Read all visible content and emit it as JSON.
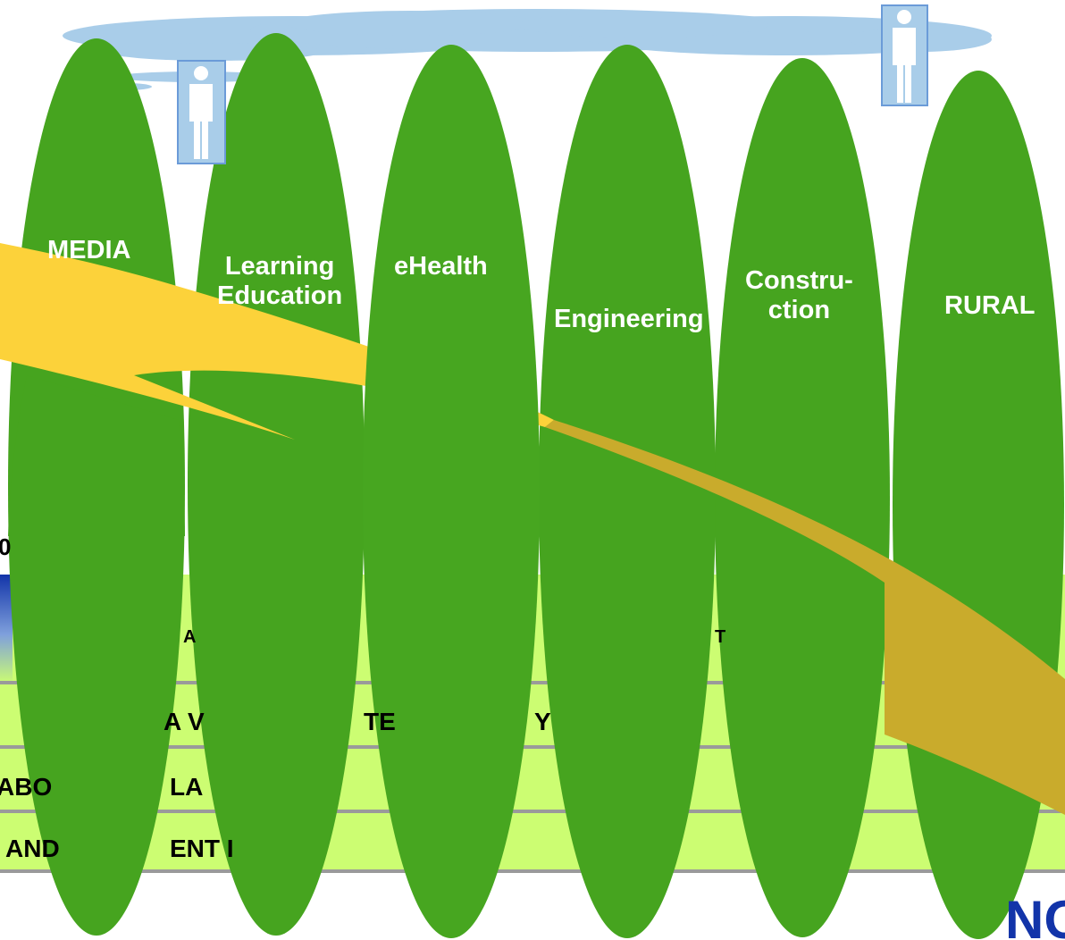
{
  "verticals": [
    {
      "name": "MEDIA"
    },
    {
      "name": "Learning Education",
      "lines": [
        "Learning",
        "Education"
      ]
    },
    {
      "name": "eHealth"
    },
    {
      "name": "Engineering"
    },
    {
      "name": "Construction",
      "lines": [
        "Constru-",
        "ction"
      ]
    },
    {
      "name": "RURAL"
    }
  ],
  "layers": {
    "row1_fragments": [
      "A",
      "T"
    ],
    "row2_fragments": [
      "A V",
      "TE",
      "Y"
    ],
    "row3_fragments": [
      "ABO",
      "LA"
    ],
    "row4_fragments": [
      "AND",
      "ENT I"
    ]
  },
  "side_fragment": "0",
  "logo_fragment": "NO",
  "colors": {
    "ellipse_green": "#46a41f",
    "arrow_yellow": "#fcd23a",
    "arrow_gold": "#c9ab2c",
    "band_green": "#ccfd72",
    "cloud_blue": "#a9cde9",
    "logo_blue": "#1234a9"
  },
  "icons": [
    "person-icon",
    "person-icon",
    "cloud-icon",
    "arrow-shape",
    "logo"
  ]
}
